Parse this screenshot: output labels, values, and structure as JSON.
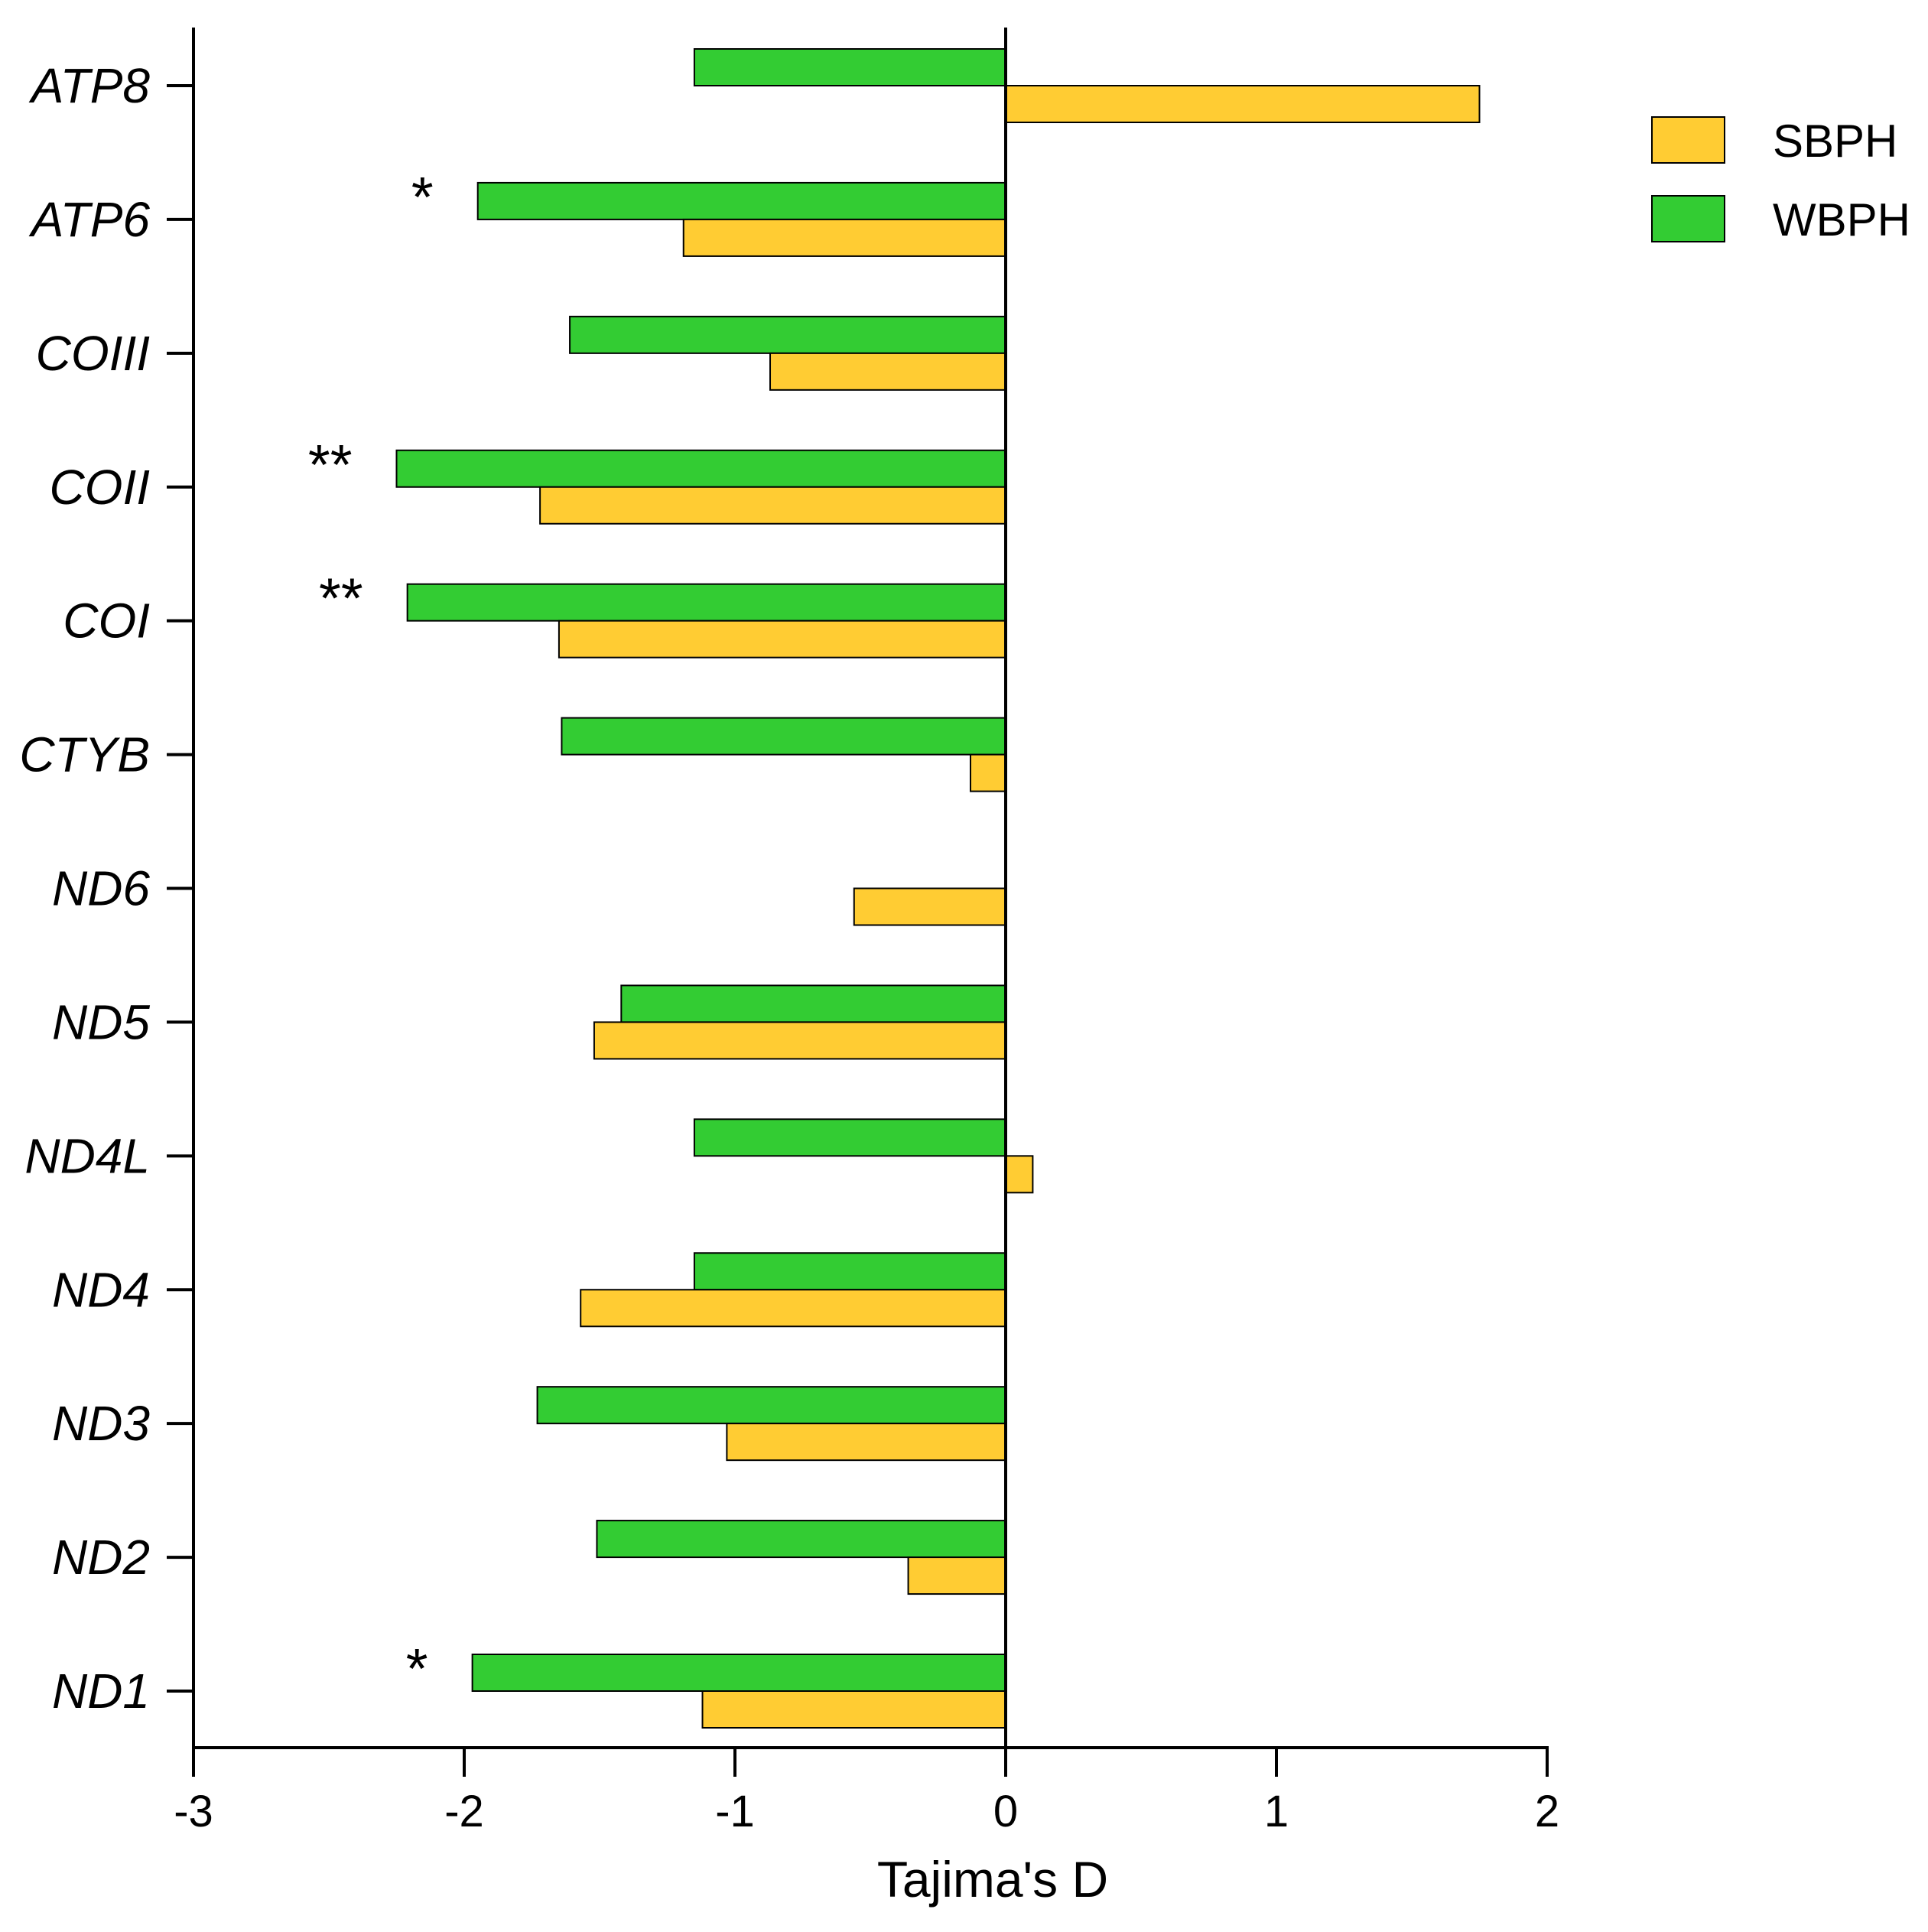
{
  "chart_data": {
    "type": "bar",
    "orientation": "horizontal",
    "title": "",
    "xlabel": "Tajima's D",
    "ylabel": "",
    "xlim": [
      -3,
      2
    ],
    "xticks": [
      "-3",
      "-2",
      "-1",
      "0",
      "1",
      "2"
    ],
    "categories": [
      "ATP8",
      "ATP6",
      "COIII",
      "COII",
      "COI",
      "CTYB",
      "ND6",
      "ND5",
      "ND4L",
      "ND4",
      "ND3",
      "ND2",
      "ND1"
    ],
    "series": [
      {
        "name": "WBPH",
        "color": "#33CC33",
        "values": [
          -1.15,
          -1.95,
          -1.61,
          -2.25,
          -2.21,
          -1.64,
          null,
          -1.42,
          -1.15,
          -1.15,
          -1.73,
          -1.51,
          -1.97
        ]
      },
      {
        "name": "SBPH",
        "color": "#FFCC33",
        "values": [
          1.75,
          -1.19,
          -0.87,
          -1.72,
          -1.65,
          -0.13,
          -0.56,
          -1.52,
          0.1,
          -1.57,
          -1.03,
          -0.36,
          -1.12
        ]
      }
    ],
    "significance": [
      "",
      "*",
      "",
      "**",
      "**",
      "",
      "",
      "",
      "",
      "",
      "",
      "",
      "*"
    ],
    "legend": {
      "position": "top-right",
      "entries": [
        "SBPH",
        "WBPH"
      ]
    },
    "grid": false
  }
}
